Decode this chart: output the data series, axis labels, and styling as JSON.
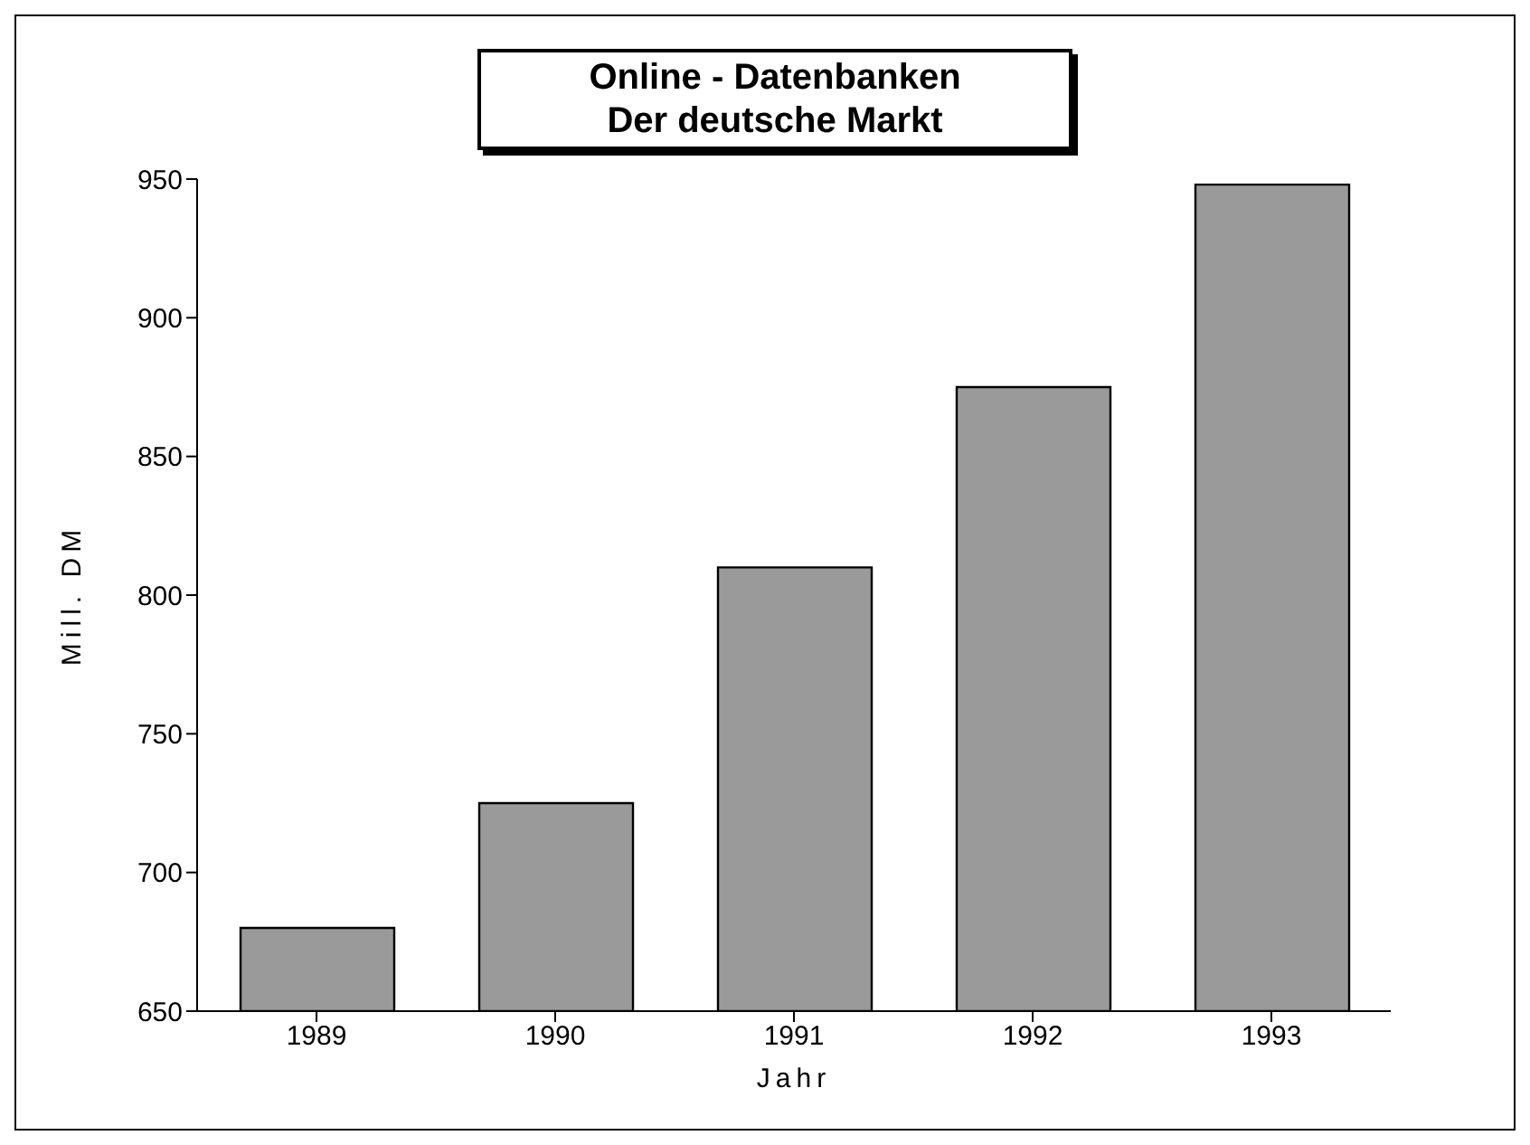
{
  "chart_data": {
    "type": "bar",
    "title": "Online - Datenbanken",
    "subtitle": "Der deutsche Markt",
    "xlabel": "Jahr",
    "ylabel": "Mill. DM",
    "categories": [
      "1989",
      "1990",
      "1991",
      "1992",
      "1993"
    ],
    "values": [
      680,
      725,
      810,
      875,
      948
    ],
    "color": "#9a9a9a",
    "ylim": [
      650,
      950
    ],
    "yticks": [
      650,
      700,
      750,
      800,
      850,
      900,
      950
    ],
    "grid": false
  }
}
